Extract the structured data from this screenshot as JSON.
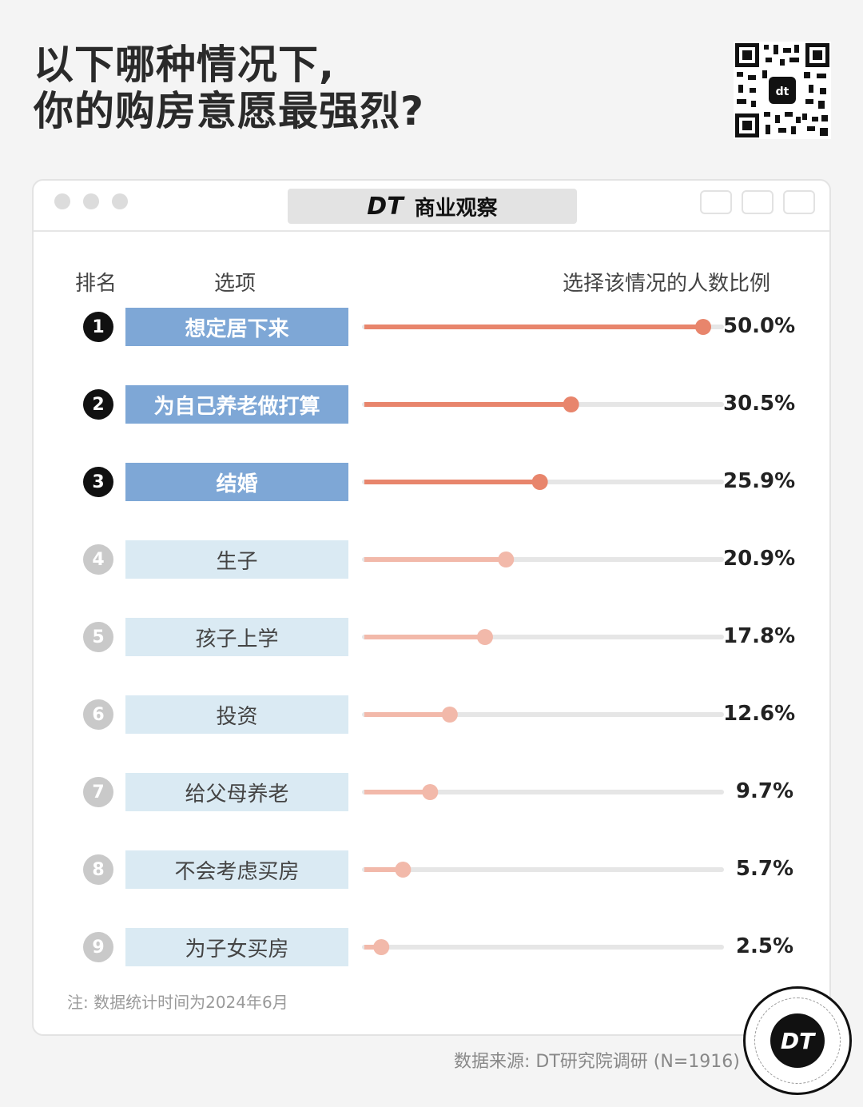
{
  "title_line1": "以下哪种情况下,",
  "title_line2": "你的购房意愿最强烈?",
  "window": {
    "brand_logo": "DT",
    "brand_name": "商业观察"
  },
  "headers": {
    "rank": "排名",
    "option": "选项",
    "percent": "选择该情况的人数比例"
  },
  "chart_data": {
    "type": "bar",
    "title": "以下哪种情况下,你的购房意愿最强烈?",
    "xlabel": "选项",
    "ylabel": "选择该情况的人数比例",
    "ranks": [
      "1",
      "2",
      "3",
      "4",
      "5",
      "6",
      "7",
      "8",
      "9"
    ],
    "categories": [
      "想定居下来",
      "为自己养老做打算",
      "结婚",
      "生子",
      "孩子上学",
      "投资",
      "给父母养老",
      "不会考虑买房",
      "为子女买房"
    ],
    "values": [
      50.0,
      30.5,
      25.9,
      20.9,
      17.8,
      12.6,
      9.7,
      5.7,
      2.5
    ],
    "value_labels": [
      "50.0%",
      "30.5%",
      "25.9%",
      "20.9%",
      "17.8%",
      "12.6%",
      "9.7%",
      "5.7%",
      "2.5%"
    ],
    "xlim": [
      0,
      50
    ],
    "highlight_top": 3,
    "colors": {
      "top_label": "#7ea7d6",
      "rest_label": "#daeaf3",
      "top_bar": "#e8856c",
      "rest_bar": "#f2b9aa",
      "track": "#e6e6e6",
      "top_rank": "#111111",
      "rest_rank": "#c9c9c9"
    }
  },
  "note": "注: 数据统计时间为2024年6月",
  "source": "数据来源: DT研究院调研 (N=1916)",
  "badge": "DT"
}
